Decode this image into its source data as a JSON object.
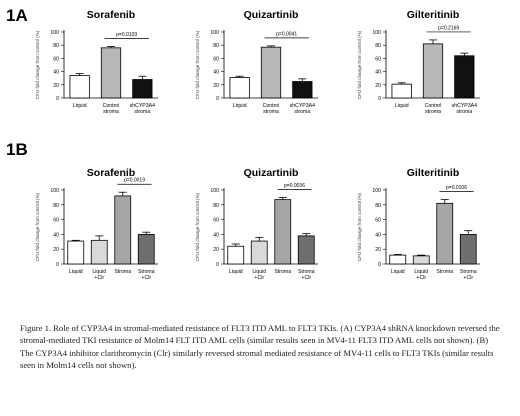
{
  "figure": {
    "row_a_tag": "1A",
    "row_b_tag": "1B",
    "caption": "Figure 1. Role of CYP3A4 in stromal-mediated resistance of FLT3 ITD AML to FLT3 TKIs. (A) CYP3A4 shRNA knockdown reversed the stromal-mediated TKI resistance of Molm14 FLT ITD AML cells (similar results seen in MV4-11 FLT3 ITD AML cells not shown). (B) The CYP3A4 inhibitor clarithromycin (Clr) similarly reversed stromal mediated resistance of MV4-11 cells to FLT3 TKIs (similar results seen in Molm14 cells not shown)."
  },
  "chart_data": [
    {
      "type": "bar",
      "id": "a1",
      "title": "Sorafenib",
      "ylabel": "CFU fold change from control (%)",
      "ylim": [
        0,
        100
      ],
      "yticks": [
        0,
        20,
        40,
        60,
        80,
        100
      ],
      "categories": [
        "Liquid",
        "Control stroma",
        "shCYP3A4 stroma"
      ],
      "values": [
        34,
        76,
        28
      ],
      "errors": [
        3,
        2,
        5
      ],
      "fills": [
        "#ffffff",
        "#b8b8b8",
        "#111111"
      ],
      "annotation": {
        "text": "p=0.0103",
        "from": 1,
        "to": 2
      }
    },
    {
      "type": "bar",
      "id": "a2",
      "title": "Quizartinib",
      "ylabel": "CFU fold change from control (%)",
      "ylim": [
        0,
        100
      ],
      "yticks": [
        0,
        20,
        40,
        60,
        80,
        100
      ],
      "categories": [
        "Liquid",
        "Control stroma",
        "shCYP3A4 stroma"
      ],
      "values": [
        31,
        77,
        25
      ],
      "errors": [
        2,
        2,
        4
      ],
      "fills": [
        "#ffffff",
        "#b8b8b8",
        "#111111"
      ],
      "annotation": {
        "text": "p=0.0041",
        "from": 1,
        "to": 2
      }
    },
    {
      "type": "bar",
      "id": "a3",
      "title": "Gilteritinib",
      "ylabel": "CFU fold change from control (%)",
      "ylim": [
        0,
        100
      ],
      "yticks": [
        0,
        20,
        40,
        60,
        80,
        100
      ],
      "categories": [
        "Liquid",
        "Control stroma",
        "shCYP3A4 stroma"
      ],
      "values": [
        21,
        82,
        64
      ],
      "errors": [
        2,
        6,
        4
      ],
      "fills": [
        "#ffffff",
        "#b8b8b8",
        "#111111"
      ],
      "annotation": {
        "text": "p=0.2169",
        "from": 1,
        "to": 2
      }
    },
    {
      "type": "bar",
      "id": "b1",
      "title": "Sorafenib",
      "ylabel": "CFU fold change from control (%)",
      "ylim": [
        0,
        100
      ],
      "yticks": [
        0,
        20,
        40,
        60,
        80,
        100
      ],
      "categories": [
        "Liquid",
        "Liquid +Clr",
        "Stroma",
        "Stroma +Clr"
      ],
      "values": [
        31,
        32,
        92,
        40
      ],
      "errors": [
        1,
        6,
        5,
        3
      ],
      "fills": [
        "#ffffff",
        "#d9d9d9",
        "#a6a6a6",
        "#6f6f6f"
      ],
      "annotation": {
        "text": "p=0.0019",
        "from": 2,
        "to": 3
      }
    },
    {
      "type": "bar",
      "id": "b2",
      "title": "Quizartinib",
      "ylabel": "CFU fold change from control (%)",
      "ylim": [
        0,
        100
      ],
      "yticks": [
        0,
        20,
        40,
        60,
        80,
        100
      ],
      "categories": [
        "Liquid",
        "Liquid +Clr",
        "Stroma",
        "Stroma +Clr"
      ],
      "values": [
        24,
        31,
        87,
        38
      ],
      "errors": [
        3,
        5,
        3,
        3
      ],
      "fills": [
        "#ffffff",
        "#d9d9d9",
        "#a6a6a6",
        "#6f6f6f"
      ],
      "annotation": {
        "text": "p=0.0036",
        "from": 2,
        "to": 3
      }
    },
    {
      "type": "bar",
      "id": "b3",
      "title": "Gilteritinib",
      "ylabel": "CFU fold change from control (%)",
      "ylim": [
        0,
        100
      ],
      "yticks": [
        0,
        20,
        40,
        60,
        80,
        100
      ],
      "categories": [
        "Liquid",
        "Liquid +Clr",
        "Stroma",
        "Stroma +Clr"
      ],
      "values": [
        12,
        11,
        82,
        40
      ],
      "errors": [
        1,
        1,
        5,
        5
      ],
      "fills": [
        "#ffffff",
        "#d9d9d9",
        "#a6a6a6",
        "#6f6f6f"
      ],
      "annotation": {
        "text": "p=0.0106",
        "from": 2,
        "to": 3
      }
    }
  ]
}
